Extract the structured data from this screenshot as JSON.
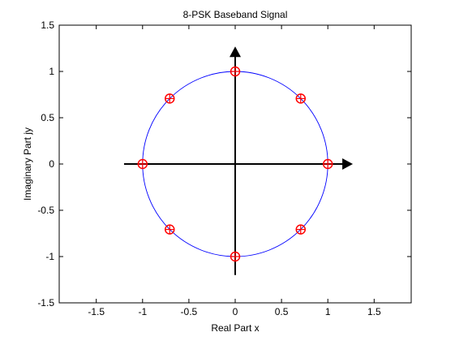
{
  "chart_data": {
    "type": "scatter",
    "title": "8-PSK Baseband Signal",
    "xlabel": "Real Part x",
    "ylabel": "Imaginary Part jy",
    "xlim": [
      -1.9,
      1.9
    ],
    "ylim": [
      -1.5,
      1.5
    ],
    "xticks": [
      -1.5,
      -1,
      -0.5,
      0,
      0.5,
      1,
      1.5
    ],
    "xtick_labels": [
      "-1.5",
      "-1",
      "-0.5",
      "0",
      "0.5",
      "1",
      "1.5"
    ],
    "yticks": [
      -1.5,
      -1,
      -0.5,
      0,
      0.5,
      1,
      1.5
    ],
    "ytick_labels": [
      "-1.5",
      "-1",
      "-0.5",
      "0",
      "0.5",
      "1",
      "1.5"
    ],
    "grid": false,
    "unit_circle": {
      "radius": 1,
      "color": "#0000ff"
    },
    "arrows": {
      "horizontal": {
        "from": [
          -1.2,
          0
        ],
        "to": [
          1.27,
          0
        ]
      },
      "vertical": {
        "from": [
          0,
          -1.2
        ],
        "to": [
          0,
          1.27
        ]
      },
      "color": "#000000"
    },
    "points": {
      "marker": "circle-plus",
      "color": "#ff0000",
      "x": [
        1,
        0.7071,
        0,
        -0.7071,
        -1,
        -0.7071,
        0,
        0.7071
      ],
      "y": [
        0,
        0.7071,
        1,
        0.7071,
        0,
        -0.7071,
        -1,
        -0.7071
      ]
    }
  }
}
